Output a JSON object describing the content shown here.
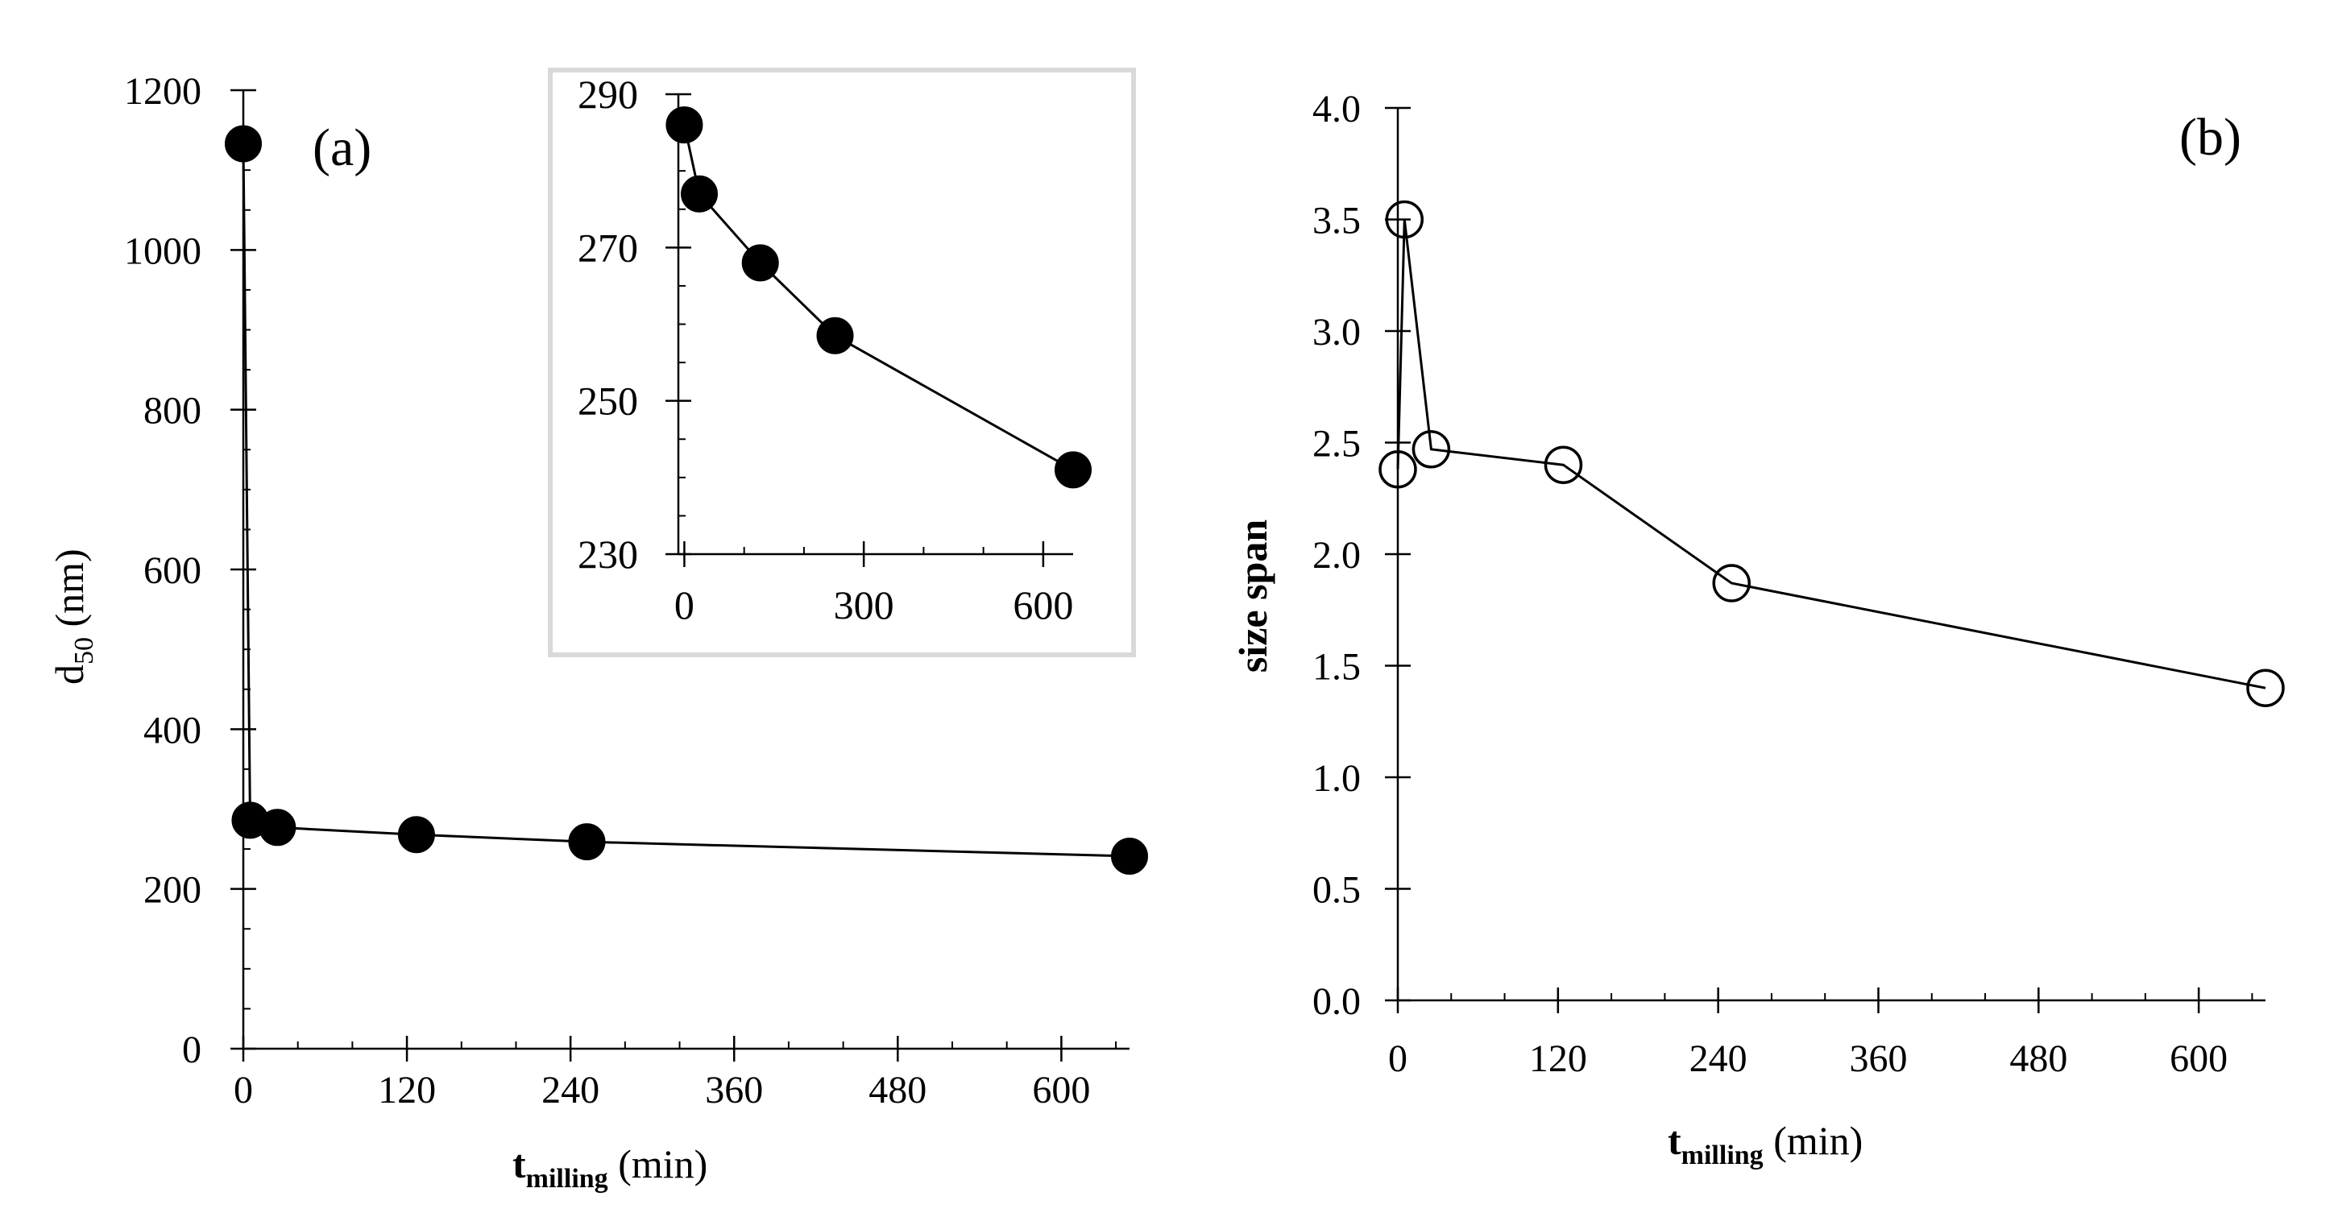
{
  "chart_data": [
    {
      "panel_label": "(a)",
      "type": "line",
      "marker": "filled-circle",
      "xlabel": {
        "main": "t",
        "sub": "milling",
        "unit": " (min)"
      },
      "ylabel": {
        "main": "d",
        "sub": "50",
        "unit": " (nm)"
      },
      "xlim": [
        0,
        650
      ],
      "ylim": [
        0,
        1200
      ],
      "xticks": [
        0,
        120,
        240,
        360,
        480,
        600
      ],
      "yticks": [
        0,
        200,
        400,
        600,
        800,
        1000,
        1200
      ],
      "series": [
        {
          "name": "d50",
          "x": [
            0,
            5,
            25,
            127,
            252,
            650
          ],
          "y": [
            1133,
            286,
            277,
            268,
            259,
            241
          ]
        }
      ],
      "inset": {
        "type": "line",
        "xlim": [
          -10,
          650
        ],
        "ylim": [
          230,
          290
        ],
        "xticks": [
          0,
          300,
          600
        ],
        "yticks": [
          230,
          250,
          270,
          290
        ],
        "series": [
          {
            "name": "d50",
            "x": [
              0,
              25,
              127,
              252,
              650
            ],
            "y": [
              286,
              277,
              268,
              258.5,
              241
            ]
          }
        ]
      }
    },
    {
      "panel_label": "(b)",
      "type": "line",
      "marker": "open-circle",
      "xlabel": {
        "main": "t",
        "sub": "milling",
        "unit": " (min)"
      },
      "ylabel": {
        "main": "size span"
      },
      "xlim": [
        0,
        650
      ],
      "ylim": [
        0,
        4.0
      ],
      "xticks": [
        0,
        120,
        240,
        360,
        480,
        600
      ],
      "yticks": [
        0.0,
        0.5,
        1.0,
        1.5,
        2.0,
        2.5,
        3.0,
        3.5,
        4.0
      ],
      "ytick_labels": [
        "0.0",
        "0.5",
        "1.0",
        "1.5",
        "2.0",
        "2.5",
        "3.0",
        "3.5",
        "4.0"
      ],
      "series": [
        {
          "name": "size span",
          "x": [
            0,
            5,
            25,
            124,
            250,
            650
          ],
          "y": [
            2.38,
            3.5,
            2.47,
            2.4,
            1.87,
            1.4
          ]
        }
      ]
    }
  ]
}
